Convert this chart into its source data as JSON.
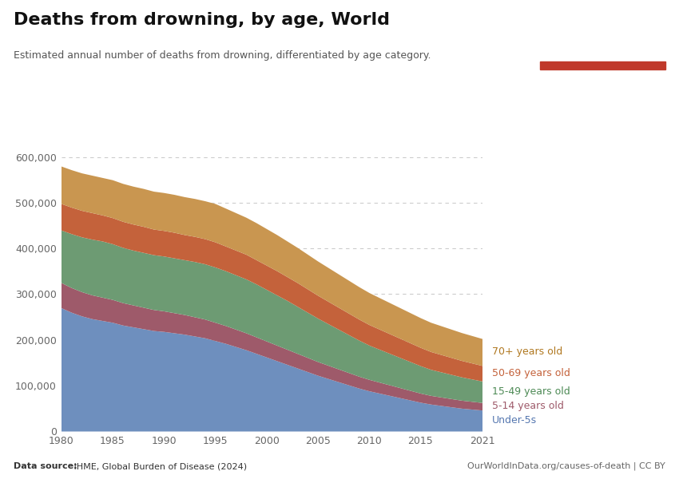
{
  "title": "Deaths from drowning, by age, World",
  "subtitle": "Estimated annual number of deaths from drowning, differentiated by age category.",
  "datasource_bold": "Data source:",
  "datasource_rest": " IHME, Global Burden of Disease (2024)",
  "url": "OurWorldInData.org/causes-of-death | CC BY",
  "years": [
    1980,
    1981,
    1982,
    1983,
    1984,
    1985,
    1986,
    1987,
    1988,
    1989,
    1990,
    1991,
    1992,
    1993,
    1994,
    1995,
    1996,
    1997,
    1998,
    1999,
    2000,
    2001,
    2002,
    2003,
    2004,
    2005,
    2006,
    2007,
    2008,
    2009,
    2010,
    2011,
    2012,
    2013,
    2014,
    2015,
    2016,
    2017,
    2018,
    2019,
    2020,
    2021
  ],
  "series": {
    "Under-5s": [
      270000,
      260000,
      252000,
      246000,
      242000,
      238000,
      232000,
      228000,
      224000,
      220000,
      218000,
      215000,
      212000,
      208000,
      204000,
      198000,
      192000,
      185000,
      178000,
      170000,
      162000,
      154000,
      146000,
      138000,
      130000,
      122000,
      115000,
      108000,
      101000,
      94000,
      88000,
      83000,
      78000,
      73000,
      68000,
      63000,
      59000,
      56000,
      53000,
      50000,
      48000,
      46000
    ],
    "5-14 years old": [
      55000,
      54000,
      53000,
      52000,
      51000,
      50000,
      49000,
      48000,
      47000,
      46000,
      45000,
      44000,
      43000,
      42000,
      41000,
      40000,
      39000,
      38000,
      37000,
      36000,
      35000,
      34000,
      33000,
      32000,
      31000,
      30000,
      29000,
      28000,
      27000,
      26000,
      25000,
      24000,
      23000,
      22000,
      21000,
      20000,
      19000,
      18500,
      18000,
      17500,
      17000,
      16500
    ],
    "15-49 years old": [
      115000,
      118000,
      120000,
      122000,
      123000,
      122000,
      121000,
      120000,
      120000,
      120000,
      120000,
      120000,
      120000,
      121000,
      121000,
      121000,
      120000,
      119000,
      118000,
      116000,
      113000,
      110000,
      107000,
      103000,
      99000,
      95000,
      91000,
      87000,
      83000,
      79000,
      75000,
      72000,
      69000,
      66000,
      63000,
      60000,
      57000,
      55000,
      53000,
      51000,
      49000,
      47000
    ],
    "50-69 years old": [
      58000,
      58000,
      58000,
      58000,
      57000,
      57000,
      57000,
      57000,
      57000,
      56000,
      56000,
      56000,
      55000,
      55000,
      55000,
      55000,
      54000,
      54000,
      54000,
      53000,
      53000,
      53000,
      52000,
      52000,
      51000,
      50000,
      49000,
      48000,
      47000,
      46000,
      45000,
      44000,
      43000,
      42000,
      41000,
      40000,
      39000,
      38000,
      37000,
      36000,
      35000,
      34000
    ],
    "70+ years old": [
      82000,
      82000,
      82000,
      82000,
      82000,
      83000,
      83000,
      83000,
      83000,
      83000,
      83000,
      83000,
      83000,
      83000,
      83000,
      84000,
      83000,
      82000,
      81000,
      81000,
      80000,
      79000,
      78000,
      77000,
      76000,
      75000,
      74000,
      73000,
      72000,
      71000,
      70000,
      69000,
      68000,
      67000,
      66000,
      65000,
      64000,
      63000,
      62000,
      61000,
      60000,
      59000
    ]
  },
  "colors": {
    "Under-5s": "#6e8fbe",
    "5-14 years old": "#9e5a6a",
    "15-49 years old": "#6d9b73",
    "50-69 years old": "#c4623b",
    "70+ years old": "#c99650"
  },
  "label_colors": {
    "Under-5s": "#5577b0",
    "5-14 years old": "#9e5a6a",
    "15-49 years old": "#4d8a55",
    "50-69 years old": "#c4623b",
    "70+ years old": "#b07820"
  },
  "ylim": [
    0,
    650000
  ],
  "yticks": [
    0,
    100000,
    200000,
    300000,
    400000,
    500000,
    600000
  ],
  "ytick_labels": [
    "0",
    "100,000",
    "200,000",
    "300,000",
    "400,000",
    "500,000",
    "600,000"
  ],
  "xticks": [
    1980,
    1985,
    1990,
    1995,
    2000,
    2005,
    2010,
    2015,
    2021
  ],
  "background_color": "#ffffff",
  "logo_bg": "#1a3057",
  "logo_red": "#c0392b"
}
